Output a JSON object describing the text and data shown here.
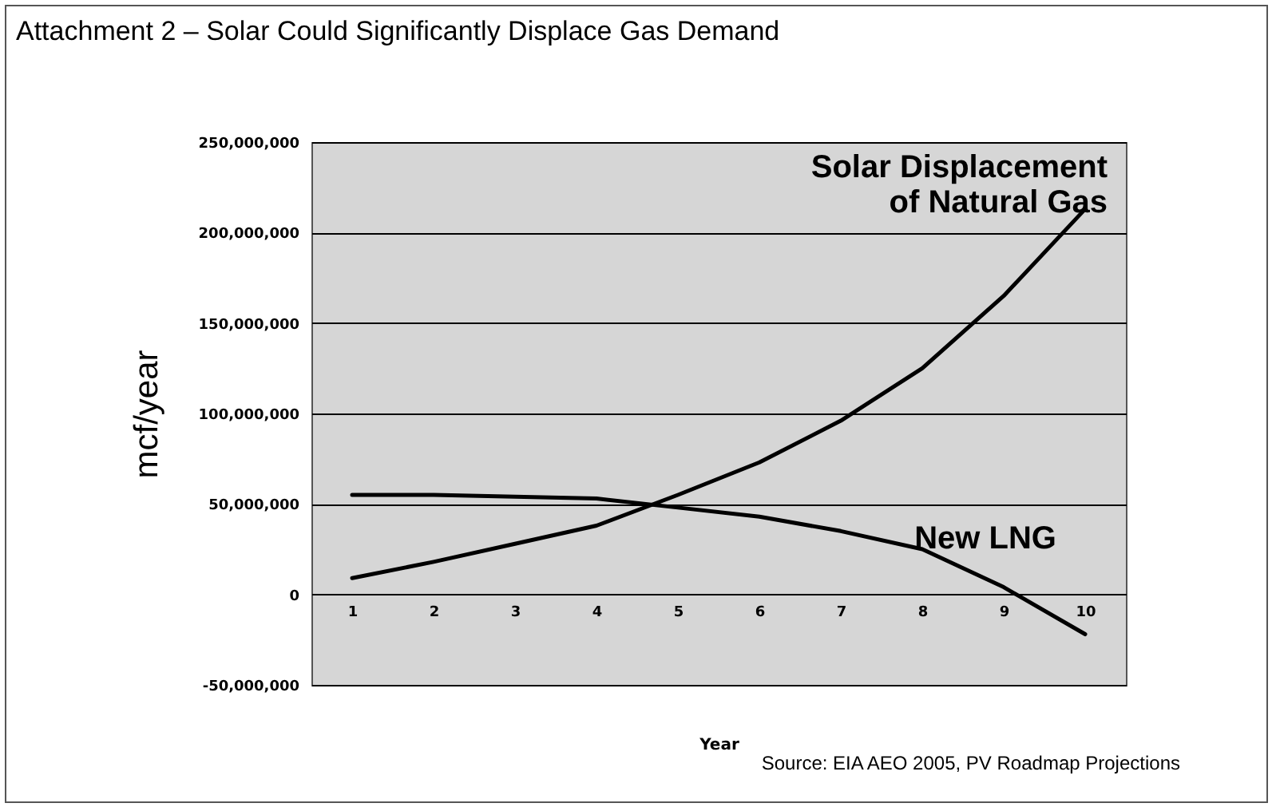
{
  "chart_data": {
    "type": "line",
    "title": "Attachment 2 – Solar Could Significantly Displace Gas Demand",
    "xlabel": "Year",
    "ylabel": "mcf/year",
    "categories": [
      "1",
      "2",
      "3",
      "4",
      "5",
      "6",
      "7",
      "8",
      "9",
      "10"
    ],
    "series": [
      {
        "name": "Solar Displacement of Natural Gas",
        "color": "#000000",
        "values": [
          9000000,
          18000000,
          28000000,
          38000000,
          55000000,
          73000000,
          96000000,
          125000000,
          165000000,
          213000000
        ]
      },
      {
        "name": "New LNG",
        "color": "#000000",
        "values": [
          55000000,
          55000000,
          54000000,
          53000000,
          48000000,
          43000000,
          35000000,
          25000000,
          4000000,
          -22000000
        ]
      }
    ],
    "ylim": [
      -50000000,
      250000000
    ],
    "yticks": [
      {
        "value": -50000000,
        "label": "-50,000,000"
      },
      {
        "value": 0,
        "label": "0"
      },
      {
        "value": 50000000,
        "label": "50,000,000"
      },
      {
        "value": 100000000,
        "label": "100,000,000"
      },
      {
        "value": 150000000,
        "label": "150,000,000"
      },
      {
        "value": 200000000,
        "label": "200,000,000"
      },
      {
        "value": 250000000,
        "label": "250,000,000"
      }
    ],
    "grid": "y",
    "legend": false,
    "marker": "none",
    "line_style": "solid",
    "annotations": [
      "Source: EIA AEO 2005, PV Roadmap Projections"
    ]
  }
}
